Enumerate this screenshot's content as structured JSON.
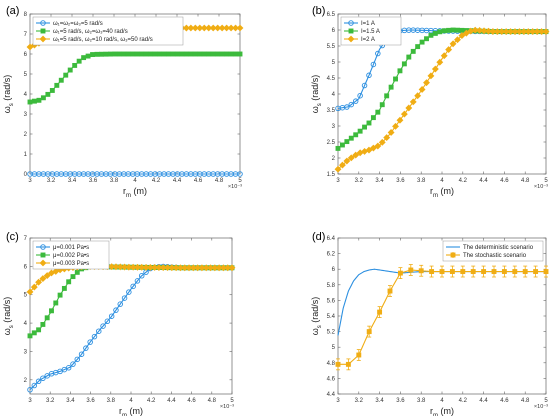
{
  "colors": {
    "blue": "#2c8fe0",
    "green": "#3cba3c",
    "orange": "#f0ad14",
    "axis": "#666666"
  },
  "chart_data": [
    {
      "panel_label": "(a)",
      "type": "line",
      "xlabel": "r",
      "xlabel_sub": "m",
      "xlabel_unit": " (m)",
      "ylabel": "ω",
      "ylabel_sub": "s",
      "ylabel_unit": " (rad/s)",
      "xlim": [
        0.003,
        0.005
      ],
      "ylim": [
        0,
        8
      ],
      "xticks": [
        0.003,
        0.0032,
        0.0034,
        0.0036,
        0.0038,
        0.004,
        0.0042,
        0.0044,
        0.0046,
        0.0048,
        0.005
      ],
      "xtick_labels": [
        "3",
        "3.2",
        "3.4",
        "3.6",
        "3.8",
        "4",
        "4.2",
        "4.4",
        "4.6",
        "4.8",
        "5"
      ],
      "yticks": [
        0,
        1,
        2,
        3,
        4,
        5,
        6,
        7,
        8
      ],
      "ytick_labels": [
        "0",
        "1",
        "2",
        "3",
        "4",
        "5",
        "6",
        "7",
        "8"
      ],
      "x_exponent": "×10⁻³",
      "legend_position": "top-left",
      "series": [
        {
          "legend": "ω₁=ω₂=ω₃=5 rad/s",
          "color": "blue",
          "marker": "circle",
          "x": [
            0.003,
            0.0035,
            0.004,
            0.0045,
            0.005
          ],
          "y": [
            0,
            0,
            0,
            0,
            0
          ]
        },
        {
          "legend": "ω₁=5 rad/s, ω₂=ω₃=40 rad/s",
          "color": "green",
          "marker": "square",
          "x": [
            0.003,
            0.0031,
            0.0032,
            0.0033,
            0.0034,
            0.0035,
            0.0036,
            0.0038,
            0.004,
            0.0045,
            0.005
          ],
          "y": [
            3.6,
            3.7,
            4.1,
            4.7,
            5.3,
            5.8,
            5.98,
            6.0,
            6.0,
            6.0,
            6.0
          ]
        },
        {
          "legend": "ω₁=5 rad/s, ω₂=10 rad/s, ω₃=50 rad/s",
          "color": "orange",
          "marker": "diamond",
          "x": [
            0.003,
            0.0032,
            0.0034,
            0.0036,
            0.0038,
            0.004,
            0.0045,
            0.005
          ],
          "y": [
            6.35,
            6.8,
            7.1,
            7.2,
            7.25,
            7.28,
            7.3,
            7.3
          ]
        }
      ]
    },
    {
      "panel_label": "(b)",
      "type": "line",
      "xlabel": "r",
      "xlabel_sub": "m",
      "xlabel_unit": " (m)",
      "ylabel": "ω",
      "ylabel_sub": "s",
      "ylabel_unit": " (rad/s)",
      "xlim": [
        0.003,
        0.005
      ],
      "ylim": [
        1.5,
        6.5
      ],
      "xticks": [
        0.003,
        0.0032,
        0.0034,
        0.0036,
        0.0038,
        0.004,
        0.0042,
        0.0044,
        0.0046,
        0.0048,
        0.005
      ],
      "xtick_labels": [
        "3",
        "3.2",
        "3.4",
        "3.6",
        "3.8",
        "4",
        "4.2",
        "4.4",
        "4.6",
        "4.8",
        "5"
      ],
      "yticks": [
        1.5,
        2,
        2.5,
        3,
        3.5,
        4,
        4.5,
        5,
        5.5,
        6,
        6.5
      ],
      "ytick_labels": [
        "1.5",
        "2",
        "2.5",
        "3",
        "3.5",
        "4",
        "4.5",
        "5",
        "5.5",
        "6",
        "6.5"
      ],
      "x_exponent": "×10⁻³",
      "legend_position": "top-left",
      "series": [
        {
          "legend": "I=1 A",
          "color": "blue",
          "marker": "circle",
          "x": [
            0.003,
            0.0031,
            0.0032,
            0.0033,
            0.0034,
            0.0035,
            0.0036,
            0.0037,
            0.0038,
            0.004,
            0.0045,
            0.005
          ],
          "y": [
            3.55,
            3.6,
            3.85,
            4.6,
            5.4,
            5.85,
            5.98,
            6.0,
            5.99,
            5.97,
            5.95,
            5.95
          ]
        },
        {
          "legend": "I=1.5 A",
          "color": "green",
          "marker": "square",
          "x": [
            0.003,
            0.0031,
            0.0032,
            0.0033,
            0.0034,
            0.0035,
            0.0036,
            0.0037,
            0.0038,
            0.0039,
            0.004,
            0.0041,
            0.0045,
            0.005
          ],
          "y": [
            2.3,
            2.55,
            2.8,
            3.1,
            3.5,
            4.15,
            4.75,
            5.25,
            5.6,
            5.85,
            5.97,
            6.0,
            5.95,
            5.95
          ]
        },
        {
          "legend": "I=2 A",
          "color": "orange",
          "marker": "diamond",
          "x": [
            0.003,
            0.0031,
            0.0032,
            0.0033,
            0.0034,
            0.0035,
            0.0036,
            0.0037,
            0.0038,
            0.0039,
            0.004,
            0.0041,
            0.0042,
            0.0043,
            0.0045,
            0.005
          ],
          "y": [
            1.65,
            1.95,
            2.15,
            2.25,
            2.4,
            2.75,
            3.2,
            3.65,
            4.1,
            4.6,
            5.1,
            5.55,
            5.85,
            6.0,
            5.95,
            5.95
          ]
        }
      ]
    },
    {
      "panel_label": "(c)",
      "type": "line",
      "xlabel": "r",
      "xlabel_sub": "m",
      "xlabel_unit": " (m)",
      "ylabel": "ω",
      "ylabel_sub": "s",
      "ylabel_unit": " (rad/s)",
      "xlim": [
        0.003,
        0.005
      ],
      "ylim": [
        1.5,
        7
      ],
      "xticks": [
        0.003,
        0.0032,
        0.0034,
        0.0036,
        0.0038,
        0.004,
        0.0042,
        0.0044,
        0.0046,
        0.0048,
        0.005
      ],
      "xtick_labels": [
        "3",
        "3.2",
        "3.4",
        "3.6",
        "3.8",
        "4",
        "4.2",
        "4.4",
        "4.6",
        "4.8",
        "5"
      ],
      "yticks": [
        2,
        3,
        4,
        5,
        6,
        7
      ],
      "ytick_labels": [
        "2",
        "3",
        "4",
        "5",
        "6",
        "7"
      ],
      "x_exponent": "×10⁻³",
      "legend_position": "top-left",
      "series": [
        {
          "legend": "μ=0.001 Pa•s",
          "color": "blue",
          "marker": "circle",
          "x": [
            0.003,
            0.0031,
            0.0032,
            0.0033,
            0.0034,
            0.0035,
            0.0036,
            0.0037,
            0.0038,
            0.0039,
            0.004,
            0.0041,
            0.0042,
            0.0043,
            0.0045,
            0.005
          ],
          "y": [
            1.65,
            2.0,
            2.2,
            2.3,
            2.45,
            2.85,
            3.35,
            3.8,
            4.2,
            4.7,
            5.2,
            5.65,
            5.95,
            6.0,
            5.95,
            5.95
          ]
        },
        {
          "legend": "μ=0.002 Pa•s",
          "color": "green",
          "marker": "square",
          "x": [
            0.003,
            0.0031,
            0.0032,
            0.0033,
            0.0034,
            0.0035,
            0.0036,
            0.0037,
            0.0038,
            0.004,
            0.0045,
            0.005
          ],
          "y": [
            3.55,
            3.8,
            4.35,
            5.0,
            5.55,
            5.9,
            6.0,
            6.0,
            5.98,
            5.97,
            5.95,
            5.95
          ]
        },
        {
          "legend": "μ=0.003 Pa•s",
          "color": "orange",
          "marker": "diamond",
          "x": [
            0.003,
            0.0031,
            0.0032,
            0.0033,
            0.0034,
            0.0035,
            0.0036,
            0.0038,
            0.004,
            0.0045,
            0.005
          ],
          "y": [
            5.1,
            5.5,
            5.75,
            5.88,
            5.95,
            5.98,
            6.0,
            5.99,
            5.97,
            5.95,
            5.95
          ]
        }
      ]
    },
    {
      "panel_label": "(d)",
      "type": "line",
      "xlabel": "r",
      "xlabel_sub": "m",
      "xlabel_unit": " (m)",
      "ylabel": "ω",
      "ylabel_sub": "s",
      "ylabel_unit": " (rad/s)",
      "xlim": [
        0.003,
        0.005
      ],
      "ylim": [
        4.4,
        6.4
      ],
      "xticks": [
        0.003,
        0.0032,
        0.0034,
        0.0036,
        0.0038,
        0.004,
        0.0042,
        0.0044,
        0.0046,
        0.0048,
        0.005
      ],
      "xtick_labels": [
        "3",
        "3.2",
        "3.4",
        "3.6",
        "3.8",
        "4",
        "4.2",
        "4.4",
        "4.6",
        "4.8",
        "5"
      ],
      "yticks": [
        4.4,
        4.6,
        4.8,
        5,
        5.2,
        5.4,
        5.6,
        5.8,
        6,
        6.2,
        6.4
      ],
      "ytick_labels": [
        "4.4",
        "4.6",
        "4.8",
        "5",
        "5.2",
        "5.4",
        "5.6",
        "5.8",
        "6",
        "6.2",
        "6.4"
      ],
      "x_exponent": "×10⁻³",
      "legend_position": "top-right",
      "series": [
        {
          "legend": "The deterministic scenario",
          "color": "blue",
          "marker": "none",
          "x": [
            0.003,
            0.00305,
            0.0031,
            0.00315,
            0.0032,
            0.00325,
            0.0033,
            0.00335,
            0.0034,
            0.0035,
            0.0036,
            0.0037,
            0.0038,
            0.004,
            0.0045,
            0.005
          ],
          "y": [
            5.15,
            5.5,
            5.72,
            5.85,
            5.93,
            5.97,
            5.99,
            6.0,
            5.99,
            5.97,
            5.95,
            5.96,
            5.97,
            5.97,
            5.97,
            5.97
          ]
        },
        {
          "legend": "The stochastic scenario",
          "color": "orange",
          "marker": "square",
          "error": 0.07,
          "x": [
            0.003,
            0.0031,
            0.0032,
            0.0033,
            0.0034,
            0.0035,
            0.0036,
            0.0037,
            0.0038,
            0.0039,
            0.004,
            0.0041,
            0.0042,
            0.0043,
            0.0044,
            0.0045,
            0.0046,
            0.0047,
            0.0048,
            0.0049,
            0.005
          ],
          "y": [
            4.78,
            4.78,
            4.9,
            5.2,
            5.45,
            5.72,
            5.95,
            5.99,
            5.98,
            5.97,
            5.97,
            5.97,
            5.97,
            5.97,
            5.97,
            5.97,
            5.97,
            5.97,
            5.97,
            5.97,
            5.97
          ]
        }
      ]
    }
  ]
}
